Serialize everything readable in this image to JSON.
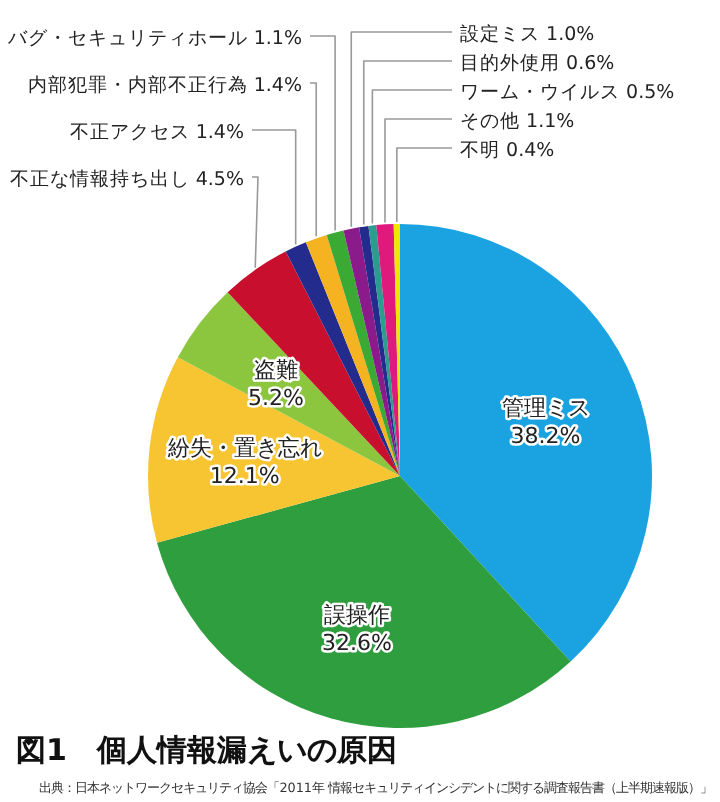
{
  "chart_data": {
    "type": "pie",
    "title": "図1　個人情報漏えいの原因",
    "categories": [
      "管理ミス",
      "誤操作",
      "紛失・置き忘れ",
      "盗難",
      "不正な情報持ち出し",
      "不正アクセス",
      "内部犯罪・内部不正行為",
      "バグ・セキュリティホール",
      "設定ミス",
      "目的外使用",
      "ワーム・ウイルス",
      "その他",
      "不明"
    ],
    "values": [
      38.2,
      32.6,
      12.1,
      5.2,
      4.5,
      1.4,
      1.4,
      1.1,
      1.0,
      0.6,
      0.5,
      1.1,
      0.4
    ],
    "colors": [
      "#1aa3e0",
      "#2e9e3e",
      "#f7c531",
      "#8cc63f",
      "#c8102e",
      "#232c8c",
      "#f5b321",
      "#3aaa35",
      "#8b1a8b",
      "#232c8c",
      "#2a9d8f",
      "#e0197d",
      "#f2e500"
    ],
    "value_labels": [
      "38.2%",
      "32.6%",
      "12.1%",
      "5.2%",
      "4.5%",
      "1.4%",
      "1.4%",
      "1.1%",
      "1.0%",
      "0.6%",
      "0.5%",
      "1.1%",
      "0.4%"
    ],
    "annotations": [
      "出典：日本ネットワークセキュリティ協会「2011年 情報セキュリティインシデントに関する調査報告書（上半期速報版）」"
    ]
  }
}
